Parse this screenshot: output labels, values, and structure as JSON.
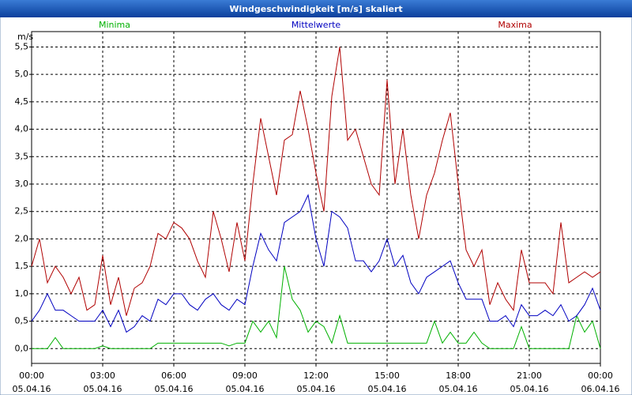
{
  "chart_data": {
    "type": "line",
    "title": "Windgeschwindigkeit [m/s] skaliert",
    "y_label": "m/s",
    "x": [
      0,
      20,
      40,
      60,
      80,
      100,
      120,
      140,
      160,
      180,
      200,
      220,
      240,
      260,
      280,
      300,
      320,
      340,
      360,
      380,
      400,
      420,
      440,
      460,
      480,
      500,
      520,
      540,
      560,
      580,
      600,
      620,
      640,
      660,
      680,
      700,
      720,
      740,
      760,
      780,
      800,
      820,
      840,
      860,
      880,
      900,
      920,
      940,
      960,
      980,
      1000,
      1020,
      1040,
      1060,
      1080,
      1100,
      1120,
      1140,
      1160,
      1180,
      1200,
      1220,
      1240,
      1260,
      1280,
      1300,
      1320,
      1340,
      1360,
      1380,
      1400,
      1420,
      1440
    ],
    "series": [
      {
        "name": "Minima",
        "color": "#00b000",
        "values": [
          0,
          0,
          0,
          0.2,
          0,
          0,
          0,
          0,
          0,
          0.05,
          0,
          0,
          0,
          0,
          0,
          0,
          0.1,
          0.1,
          0.1,
          0.1,
          0.1,
          0.1,
          0.1,
          0.1,
          0.1,
          0.05,
          0.1,
          0.1,
          0.5,
          0.3,
          0.5,
          0.2,
          1.5,
          0.9,
          0.7,
          0.3,
          0.5,
          0.4,
          0.1,
          0.6,
          0.1,
          0.1,
          0.1,
          0.1,
          0.1,
          0.1,
          0.1,
          0.1,
          0.1,
          0.1,
          0.1,
          0.5,
          0.1,
          0.3,
          0.1,
          0.1,
          0.3,
          0.1,
          0,
          0,
          0,
          0,
          0.4,
          0,
          0,
          0,
          0,
          0,
          0,
          0.6,
          0.3,
          0.5,
          0
        ]
      },
      {
        "name": "Mittelwerte",
        "color": "#0000c0",
        "values": [
          0.5,
          0.7,
          1.0,
          0.7,
          0.7,
          0.6,
          0.5,
          0.5,
          0.5,
          0.7,
          0.4,
          0.7,
          0.3,
          0.4,
          0.6,
          0.5,
          0.9,
          0.8,
          1.0,
          1.0,
          0.8,
          0.7,
          0.9,
          1.0,
          0.8,
          0.7,
          0.9,
          0.8,
          1.5,
          2.1,
          1.8,
          1.6,
          2.3,
          2.4,
          2.5,
          2.8,
          2.0,
          1.5,
          2.5,
          2.4,
          2.2,
          1.6,
          1.6,
          1.4,
          1.6,
          2.0,
          1.5,
          1.7,
          1.2,
          1.0,
          1.3,
          1.4,
          1.5,
          1.6,
          1.2,
          0.9,
          0.9,
          0.9,
          0.5,
          0.5,
          0.6,
          0.4,
          0.8,
          0.6,
          0.6,
          0.7,
          0.6,
          0.8,
          0.5,
          0.6,
          0.8,
          1.1,
          0.7
        ]
      },
      {
        "name": "Maxima",
        "color": "#b00000",
        "values": [
          1.5,
          2.0,
          1.2,
          1.5,
          1.3,
          1.0,
          1.3,
          0.7,
          0.8,
          1.7,
          0.8,
          1.3,
          0.6,
          1.1,
          1.2,
          1.5,
          2.1,
          2.0,
          2.3,
          2.2,
          2.0,
          1.6,
          1.3,
          2.5,
          2.0,
          1.4,
          2.3,
          1.6,
          3.0,
          4.2,
          3.5,
          2.8,
          3.8,
          3.9,
          4.7,
          4.0,
          3.2,
          2.5,
          4.6,
          5.5,
          3.8,
          4.0,
          3.5,
          3.0,
          2.8,
          4.9,
          3.0,
          4.0,
          2.8,
          2.0,
          2.8,
          3.2,
          3.8,
          4.3,
          3.0,
          1.8,
          1.5,
          1.8,
          0.8,
          1.2,
          0.9,
          0.7,
          1.8,
          1.2,
          1.2,
          1.2,
          1.0,
          2.3,
          1.2,
          1.3,
          1.4,
          1.3,
          1.4
        ]
      }
    ],
    "xlim": [
      0,
      1440
    ],
    "xticks": [
      {
        "value": 0,
        "label": "00:00\n05.04.16"
      },
      {
        "value": 180,
        "label": "03:00\n05.04.16"
      },
      {
        "value": 360,
        "label": "06:00\n05.04.16"
      },
      {
        "value": 540,
        "label": "09:00\n05.04.16"
      },
      {
        "value": 720,
        "label": "12:00\n05.04.16"
      },
      {
        "value": 900,
        "label": "15:00\n05.04.16"
      },
      {
        "value": 1080,
        "label": "18:00\n05.04.16"
      },
      {
        "value": 1260,
        "label": "21:00\n05.04.16"
      },
      {
        "value": 1440,
        "label": "00:00\n06.04.16"
      }
    ],
    "ylim": [
      -0.27,
      5.78
    ],
    "yticks": [
      {
        "value": 0,
        "label": "0,0"
      },
      {
        "value": 0.5,
        "label": "0,5"
      },
      {
        "value": 1,
        "label": "1,0"
      },
      {
        "value": 1.5,
        "label": "1,5"
      },
      {
        "value": 2,
        "label": "2,0"
      },
      {
        "value": 2.5,
        "label": "2,5"
      },
      {
        "value": 3,
        "label": "3,0"
      },
      {
        "value": 3.5,
        "label": "3,5"
      },
      {
        "value": 4,
        "label": "4,0"
      },
      {
        "value": 4.5,
        "label": "4,5"
      },
      {
        "value": 5,
        "label": "5,0"
      },
      {
        "value": 5.5,
        "label": "5,5"
      }
    ],
    "grid": true
  }
}
